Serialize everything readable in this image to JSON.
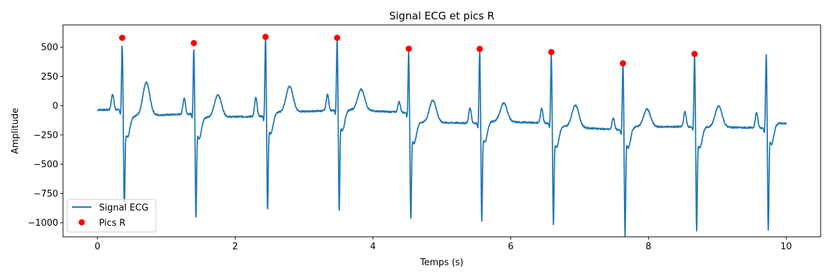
{
  "chart_data": {
    "type": "line",
    "title": "Signal ECG et pics R",
    "xlabel": "Temps (s)",
    "ylabel": "Amplitude",
    "xlim": [
      -0.5,
      10.5
    ],
    "ylim": [
      -1120,
      690
    ],
    "xticks": [
      0,
      2,
      4,
      6,
      8,
      10
    ],
    "xtick_labels": [
      "0",
      "2",
      "4",
      "6",
      "8",
      "10"
    ],
    "yticks": [
      -1000,
      -750,
      -500,
      -250,
      0,
      250,
      500
    ],
    "ytick_labels": [
      "−1000",
      "−750",
      "−500",
      "−250",
      "0",
      "250",
      "500"
    ],
    "grid": false,
    "legend_position": "lower-left",
    "colors": {
      "signal": "#1f77b4",
      "peaks": "#ff0000"
    },
    "series": [
      {
        "name": "Signal ECG",
        "type": "line",
        "beats": [
          {
            "r_time": 0.36,
            "r_amp": 575,
            "s_amp": -810,
            "p_amp": 100,
            "t_amp": 190,
            "baseline_before": -35,
            "baseline_after": -90
          },
          {
            "r_time": 1.4,
            "r_amp": 530,
            "s_amp": -880,
            "p_amp": 70,
            "t_amp": 90,
            "baseline_before": -70,
            "baseline_after": -100
          },
          {
            "r_time": 2.44,
            "r_amp": 585,
            "s_amp": -820,
            "p_amp": 70,
            "t_amp": 160,
            "baseline_before": -90,
            "baseline_after": -60
          },
          {
            "r_time": 3.48,
            "r_amp": 590,
            "s_amp": -830,
            "p_amp": 100,
            "t_amp": 150,
            "baseline_before": -40,
            "baseline_after": -30
          },
          {
            "r_time": 4.52,
            "r_amp": 490,
            "s_amp": -900,
            "p_amp": 30,
            "t_amp": 50,
            "baseline_before": -60,
            "baseline_after": -140
          },
          {
            "r_time": 5.55,
            "r_amp": 485,
            "s_amp": -910,
            "p_amp": -20,
            "t_amp": 30,
            "baseline_before": -150,
            "baseline_after": -130
          },
          {
            "r_time": 6.59,
            "r_amp": 460,
            "s_amp": -940,
            "p_amp": -30,
            "t_amp": 20,
            "baseline_before": -150,
            "baseline_after": -170
          },
          {
            "r_time": 7.63,
            "r_amp": 365,
            "s_amp": -1040,
            "p_amp": -110,
            "t_amp": -30,
            "baseline_before": -210,
            "baseline_after": -180
          },
          {
            "r_time": 8.67,
            "r_amp": 445,
            "s_amp": -990,
            "p_amp": -50,
            "t_amp": 0,
            "baseline_before": -180,
            "baseline_after": -180
          },
          {
            "r_time": 9.71,
            "r_amp": 435,
            "s_amp": -985,
            "p_amp": -60,
            "t_amp": null,
            "baseline_before": -190,
            "baseline_after": -150
          }
        ],
        "x_start": 0,
        "x_end": 10
      },
      {
        "name": "Pics R",
        "type": "scatter",
        "x": [
          0.36,
          1.4,
          2.44,
          3.48,
          4.52,
          5.55,
          6.59,
          7.63,
          8.67
        ],
        "y": [
          580,
          535,
          588,
          580,
          487,
          485,
          458,
          362,
          442
        ]
      }
    ]
  }
}
